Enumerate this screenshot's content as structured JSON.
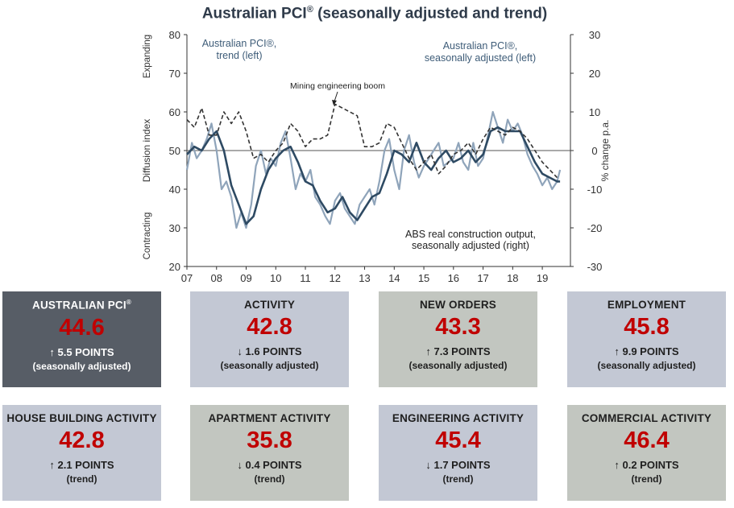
{
  "title": "Australian PCI",
  "title_reg": "®",
  "chart_data": {
    "type": "line",
    "title": "Australian PCI® (seasonally adjusted and trend)",
    "ylabel_left": "Diffusion index",
    "ylabel_right": "% change p.a.",
    "ylabel_top": "Expanding",
    "ylabel_bottom": "Contracting",
    "ylim_left": [
      20,
      80
    ],
    "ylim_right": [
      -30,
      30
    ],
    "yticks_left": [
      "20",
      "30",
      "40",
      "50",
      "60",
      "70",
      "80"
    ],
    "yticks_right": [
      "-30",
      "-20",
      "-10",
      "0",
      "10",
      "20",
      "30"
    ],
    "xticks": [
      "07",
      "08",
      "09",
      "10",
      "11",
      "12",
      "13",
      "14",
      "15",
      "16",
      "17",
      "18",
      "19"
    ],
    "xlim": [
      2007,
      2019.95
    ],
    "annotations": {
      "trend_label_1": "Australian PCI®,",
      "trend_label_2": "trend (left)",
      "sa_label_1": "Australian PCI®,",
      "sa_label_2": "seasonally adjusted (left)",
      "boom_label": "Mining engineering boom",
      "abs_label_1": "ABS real construction output,",
      "abs_label_2": "seasonally adjusted (right)"
    },
    "series": [
      {
        "name": "Australian PCI®, seasonally adjusted (left)",
        "axis": "left",
        "color": "#8fa4ba",
        "x": [
          2007.0,
          2007.17,
          2007.33,
          2007.5,
          2007.67,
          2007.83,
          2008.0,
          2008.17,
          2008.33,
          2008.5,
          2008.67,
          2008.83,
          2009.0,
          2009.17,
          2009.33,
          2009.5,
          2009.67,
          2009.83,
          2010.0,
          2010.17,
          2010.33,
          2010.5,
          2010.67,
          2010.83,
          2011.0,
          2011.17,
          2011.33,
          2011.5,
          2011.67,
          2011.83,
          2012.0,
          2012.17,
          2012.33,
          2012.5,
          2012.67,
          2012.83,
          2013.0,
          2013.17,
          2013.33,
          2013.5,
          2013.67,
          2013.83,
          2014.0,
          2014.17,
          2014.33,
          2014.5,
          2014.67,
          2014.83,
          2015.0,
          2015.17,
          2015.33,
          2015.5,
          2015.67,
          2015.83,
          2016.0,
          2016.17,
          2016.33,
          2016.5,
          2016.67,
          2016.83,
          2017.0,
          2017.17,
          2017.33,
          2017.5,
          2017.67,
          2017.83,
          2018.0,
          2018.17,
          2018.33,
          2018.5,
          2018.67,
          2018.83,
          2019.0,
          2019.17,
          2019.33,
          2019.5,
          2019.6
        ],
        "values": [
          45,
          52,
          48,
          50,
          53,
          57,
          50,
          40,
          42,
          38,
          30,
          34,
          30,
          36,
          46,
          50,
          44,
          48,
          46,
          52,
          55,
          48,
          40,
          44,
          42,
          45,
          38,
          36,
          33,
          31,
          37,
          39,
          35,
          33,
          31,
          36,
          38,
          40,
          36,
          42,
          50,
          53,
          45,
          40,
          50,
          54,
          47,
          43,
          46,
          48,
          50,
          52,
          46,
          47,
          48,
          52,
          47,
          45,
          52,
          46,
          48,
          54,
          60,
          56,
          52,
          58,
          55,
          57,
          54,
          49,
          46,
          44,
          41,
          43,
          40,
          42,
          45
        ]
      },
      {
        "name": "Australian PCI®, trend (left)",
        "axis": "left",
        "color": "#2e4a63",
        "x": [
          2007.0,
          2007.25,
          2007.5,
          2007.75,
          2008.0,
          2008.25,
          2008.5,
          2008.75,
          2009.0,
          2009.25,
          2009.5,
          2009.75,
          2010.0,
          2010.25,
          2010.5,
          2010.75,
          2011.0,
          2011.25,
          2011.5,
          2011.75,
          2012.0,
          2012.25,
          2012.5,
          2012.75,
          2013.0,
          2013.25,
          2013.5,
          2013.75,
          2014.0,
          2014.25,
          2014.5,
          2014.75,
          2015.0,
          2015.25,
          2015.5,
          2015.75,
          2016.0,
          2016.25,
          2016.5,
          2016.75,
          2017.0,
          2017.25,
          2017.5,
          2017.75,
          2018.0,
          2018.25,
          2018.5,
          2018.75,
          2019.0,
          2019.25,
          2019.5,
          2019.6
        ],
        "values": [
          49,
          51,
          50,
          53,
          55,
          50,
          41,
          36,
          31,
          33,
          40,
          45,
          48,
          50,
          51,
          47,
          42,
          41,
          37,
          34,
          35,
          38,
          34,
          32,
          35,
          38,
          39,
          44,
          50,
          49,
          47,
          52,
          47,
          45,
          48,
          50,
          47,
          48,
          50,
          47,
          49,
          55,
          56,
          55,
          55,
          55,
          51,
          47,
          44,
          43,
          42,
          42
        ]
      },
      {
        "name": "ABS real construction output, seasonally adjusted (right)",
        "axis": "right",
        "color": "#333333",
        "dashed": true,
        "x": [
          2007.0,
          2007.25,
          2007.5,
          2007.75,
          2008.0,
          2008.25,
          2008.5,
          2008.75,
          2009.0,
          2009.25,
          2009.5,
          2009.75,
          2010.0,
          2010.25,
          2010.5,
          2010.75,
          2011.0,
          2011.25,
          2011.5,
          2011.75,
          2012.0,
          2012.25,
          2012.5,
          2012.75,
          2013.0,
          2013.25,
          2013.5,
          2013.75,
          2014.0,
          2014.25,
          2014.5,
          2014.75,
          2015.0,
          2015.25,
          2015.5,
          2015.75,
          2016.0,
          2016.25,
          2016.5,
          2016.75,
          2017.0,
          2017.25,
          2017.5,
          2017.75,
          2018.0,
          2018.25,
          2018.5,
          2018.75,
          2019.0,
          2019.25,
          2019.5
        ],
        "values": [
          8,
          6,
          11,
          4,
          4,
          10,
          7,
          10,
          5,
          -2,
          -1,
          -3,
          0,
          2,
          7,
          5,
          1,
          3,
          3,
          4,
          12,
          11,
          10,
          9,
          1,
          1,
          2,
          7,
          6,
          2,
          -2,
          -5,
          -3,
          -1,
          -6,
          -4,
          -1,
          0,
          2,
          -1,
          3,
          6,
          5,
          4,
          6,
          5,
          3,
          0,
          -3,
          -5,
          -7
        ]
      }
    ]
  },
  "cards": [
    {
      "name": "AUSTRALIAN PCI",
      "reg": "®",
      "value": "44.6",
      "change": "↑ 5.5 POINTS",
      "note": "(seasonally adjusted)"
    },
    {
      "name": "ACTIVITY",
      "value": "42.8",
      "change": "↓ 1.6 POINTS",
      "note": "(seasonally adjusted)"
    },
    {
      "name": "NEW ORDERS",
      "value": "43.3",
      "change": "↑ 7.3 POINTS",
      "note": "(seasonally adjusted)"
    },
    {
      "name": "EMPLOYMENT",
      "value": "45.8",
      "change": "↑ 9.9 POINTS",
      "note": "(seasonally adjusted)"
    },
    {
      "name": "HOUSE BUILDING ACTIVITY",
      "value": "42.8",
      "change": "↑ 2.1 POINTS",
      "note": "(trend)"
    },
    {
      "name": "APARTMENT ACTIVITY",
      "value": "35.8",
      "change": "↓ 0.4 POINTS",
      "note": "(trend)"
    },
    {
      "name": "ENGINEERING ACTIVITY",
      "value": "45.4",
      "change": "↓ 1.7 POINTS",
      "note": "(trend)"
    },
    {
      "name": "COMMERCIAL ACTIVITY",
      "value": "46.4",
      "change": "↑ 0.2 POINTS",
      "note": "(trend)"
    }
  ],
  "colors": {
    "dark_card": "#575d66",
    "blue_card": "#c3c8d4",
    "green_card": "#c2c6c0",
    "value_red": "#c00000"
  }
}
